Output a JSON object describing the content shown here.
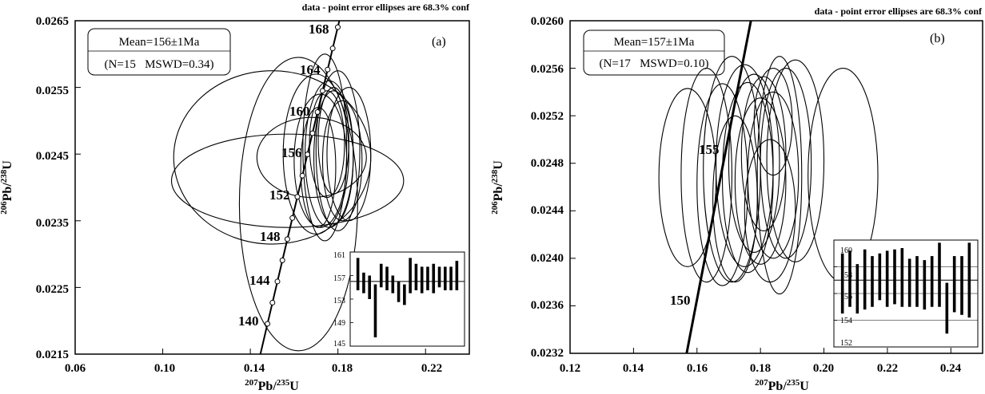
{
  "chart_data": [
    {
      "type": "scatter",
      "panel_label": "(a)",
      "note": "data - point error ellipses are 68.3% conf",
      "xlabel": "Pb/U",
      "xlabel_iso1": "207",
      "xlabel_iso2": "235",
      "ylabel": "Pb/U",
      "ylabel_iso1": "206",
      "ylabel_iso2": "238",
      "xlim": [
        0.06,
        0.24
      ],
      "ylim": [
        0.0215,
        0.0265
      ],
      "x_ticks": [
        "0.06",
        "0.10",
        "0.14",
        "0.18",
        "0.22"
      ],
      "y_ticks": [
        "0.0215",
        "0.0225",
        "0.0235",
        "0.0245",
        "0.0255",
        "0.0265"
      ],
      "summary_line1": "Mean=156±1Ma",
      "summary_line2": "(N=15   MSWD=0.34)",
      "concordia_labels": [
        "140",
        "144",
        "148",
        "152",
        "156",
        "160",
        "164",
        "168"
      ],
      "concordia_ages": [
        140,
        144,
        148,
        152,
        156,
        160,
        164,
        168
      ],
      "ellipses": [
        {
          "x": 0.15,
          "y": 0.02445,
          "rx": 0.045,
          "ry": 0.0013
        },
        {
          "x": 0.157,
          "y": 0.0241,
          "rx": 0.053,
          "ry": 0.0007
        },
        {
          "x": 0.162,
          "y": 0.02375,
          "rx": 0.027,
          "ry": 0.0022
        },
        {
          "x": 0.168,
          "y": 0.02445,
          "rx": 0.025,
          "ry": 0.0006
        },
        {
          "x": 0.17,
          "y": 0.0245,
          "rx": 0.015,
          "ry": 0.0012
        },
        {
          "x": 0.172,
          "y": 0.0244,
          "rx": 0.012,
          "ry": 0.001
        },
        {
          "x": 0.174,
          "y": 0.0246,
          "rx": 0.01,
          "ry": 0.0014
        },
        {
          "x": 0.176,
          "y": 0.0245,
          "rx": 0.011,
          "ry": 0.0011
        },
        {
          "x": 0.178,
          "y": 0.02445,
          "rx": 0.009,
          "ry": 0.001
        },
        {
          "x": 0.18,
          "y": 0.02455,
          "rx": 0.01,
          "ry": 0.0012
        },
        {
          "x": 0.182,
          "y": 0.0244,
          "rx": 0.009,
          "ry": 0.0009
        },
        {
          "x": 0.175,
          "y": 0.02465,
          "rx": 0.008,
          "ry": 0.0008
        },
        {
          "x": 0.185,
          "y": 0.0245,
          "rx": 0.01,
          "ry": 0.001
        },
        {
          "x": 0.171,
          "y": 0.0243,
          "rx": 0.008,
          "ry": 0.0009
        },
        {
          "x": 0.178,
          "y": 0.0247,
          "rx": 0.007,
          "ry": 0.0008
        }
      ],
      "inset": {
        "ylim": [
          145,
          161
        ],
        "ticks": [
          "145",
          "149",
          "153",
          "157",
          "161"
        ],
        "mean": 156,
        "bars": [
          [
            154.5,
            160.0
          ],
          [
            154.0,
            157.5
          ],
          [
            153.0,
            157.0
          ],
          [
            146.5,
            155.5
          ],
          [
            155.0,
            159.0
          ],
          [
            154.5,
            158.5
          ],
          [
            154.0,
            157.0
          ],
          [
            152.5,
            156.0
          ],
          [
            152.0,
            155.5
          ],
          [
            154.0,
            160.0
          ],
          [
            154.5,
            159.0
          ],
          [
            154.0,
            158.5
          ],
          [
            154.5,
            158.5
          ],
          [
            154.0,
            159.0
          ],
          [
            155.0,
            158.5
          ],
          [
            154.5,
            158.5
          ],
          [
            154.5,
            158.5
          ],
          [
            154.5,
            159.5
          ]
        ]
      }
    },
    {
      "type": "scatter",
      "panel_label": "(b)",
      "note": "data - point error ellipses are 68.3% conf",
      "xlabel": "Pb/U",
      "xlabel_iso1": "207",
      "xlabel_iso2": "235",
      "ylabel": "Pb/U",
      "ylabel_iso1": "206",
      "ylabel_iso2": "238",
      "xlim": [
        0.12,
        0.25
      ],
      "ylim": [
        0.0232,
        0.026
      ],
      "x_ticks": [
        "0.12",
        "0.14",
        "0.16",
        "0.18",
        "0.20",
        "0.22",
        "0.24"
      ],
      "y_ticks": [
        "0.0232",
        "0.0236",
        "0.0240",
        "0.0244",
        "0.0248",
        "0.0252",
        "0.0256",
        "0.0260"
      ],
      "summary_line1": "Mean=157±1Ma",
      "summary_line2": "(N=17   MSWD=0.10)",
      "concordia_labels": [
        "150",
        "155"
      ],
      "concordia_ages": [
        150,
        155
      ],
      "ellipses": [
        {
          "x": 0.157,
          "y": 0.02468,
          "rx": 0.009,
          "ry": 0.00075
        },
        {
          "x": 0.163,
          "y": 0.0247,
          "rx": 0.008,
          "ry": 0.0009
        },
        {
          "x": 0.168,
          "y": 0.02462,
          "rx": 0.008,
          "ry": 0.00085
        },
        {
          "x": 0.171,
          "y": 0.02475,
          "rx": 0.009,
          "ry": 0.00095
        },
        {
          "x": 0.172,
          "y": 0.0245,
          "rx": 0.007,
          "ry": 0.0007
        },
        {
          "x": 0.175,
          "y": 0.02478,
          "rx": 0.009,
          "ry": 0.00085
        },
        {
          "x": 0.176,
          "y": 0.02468,
          "rx": 0.008,
          "ry": 0.0008
        },
        {
          "x": 0.178,
          "y": 0.0248,
          "rx": 0.008,
          "ry": 0.00075
        },
        {
          "x": 0.18,
          "y": 0.02465,
          "rx": 0.008,
          "ry": 0.0007
        },
        {
          "x": 0.181,
          "y": 0.02488,
          "rx": 0.007,
          "ry": 0.00065
        },
        {
          "x": 0.183,
          "y": 0.0244,
          "rx": 0.008,
          "ry": 0.0006
        },
        {
          "x": 0.184,
          "y": 0.0247,
          "rx": 0.008,
          "ry": 0.0007
        },
        {
          "x": 0.186,
          "y": 0.0247,
          "rx": 0.007,
          "ry": 0.001
        },
        {
          "x": 0.188,
          "y": 0.0248,
          "rx": 0.008,
          "ry": 0.0008
        },
        {
          "x": 0.191,
          "y": 0.02482,
          "rx": 0.009,
          "ry": 0.00085
        },
        {
          "x": 0.184,
          "y": 0.02515,
          "rx": 0.006,
          "ry": 0.00045
        },
        {
          "x": 0.206,
          "y": 0.0247,
          "rx": 0.011,
          "ry": 0.0009
        }
      ],
      "inset": {
        "ylim": [
          152,
          160
        ],
        "ticks": [
          "152",
          "154",
          "156",
          "158",
          "160"
        ],
        "gridlines": [
          154,
          156,
          158
        ],
        "mean": 157,
        "bars": [
          [
            154.5,
            159.0
          ],
          [
            155.0,
            159.2
          ],
          [
            154.5,
            158.2
          ],
          [
            154.8,
            159.3
          ],
          [
            155.0,
            158.8
          ],
          [
            155.5,
            159.0
          ],
          [
            155.0,
            159.2
          ],
          [
            155.2,
            159.3
          ],
          [
            155.0,
            159.4
          ],
          [
            155.0,
            158.6
          ],
          [
            155.0,
            158.8
          ],
          [
            154.8,
            158.5
          ],
          [
            155.0,
            158.8
          ],
          [
            155.0,
            159.8
          ],
          [
            153.0,
            156.8
          ],
          [
            154.6,
            158.8
          ],
          [
            154.4,
            158.8
          ],
          [
            154.2,
            159.8
          ]
        ]
      }
    }
  ]
}
